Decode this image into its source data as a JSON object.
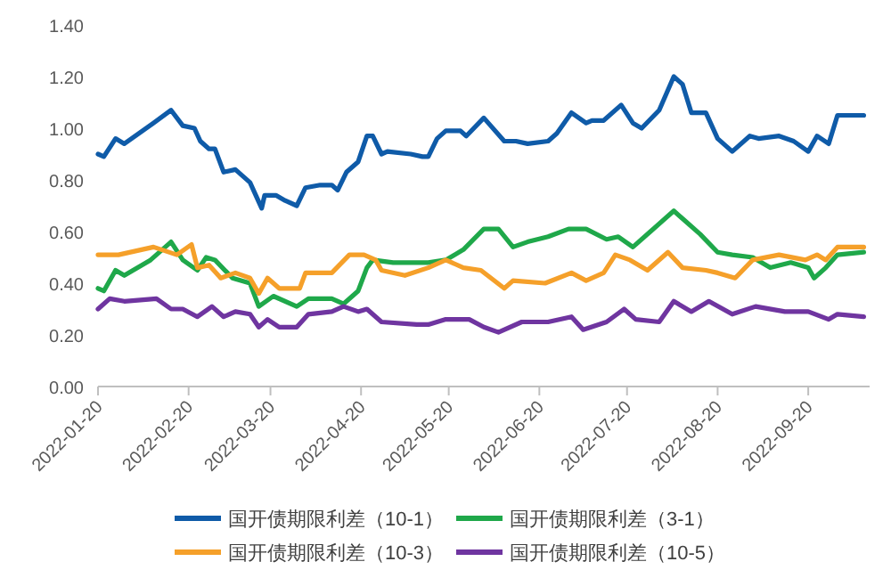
{
  "chart_data": {
    "type": "line",
    "xlim": [
      "2022-01-20",
      "2022-10-11"
    ],
    "ylim": [
      0,
      1.4
    ],
    "xticks": [
      {
        "value": "2022-01-20",
        "label": "2022-01-20"
      },
      {
        "value": "2022-02-20",
        "label": "2022-02-20"
      },
      {
        "value": "2022-03-20",
        "label": "2022-03-20"
      },
      {
        "value": "2022-04-20",
        "label": "2022-04-20"
      },
      {
        "value": "2022-05-20",
        "label": "2022-05-20"
      },
      {
        "value": "2022-06-20",
        "label": "2022-06-20"
      },
      {
        "value": "2022-07-20",
        "label": "2022-07-20"
      },
      {
        "value": "2022-08-20",
        "label": "2022-08-20"
      },
      {
        "value": "2022-09-20",
        "label": "2022-09-20"
      }
    ],
    "yticks": [
      {
        "value": 0,
        "label": "0.00"
      },
      {
        "value": 0.2,
        "label": "0.20"
      },
      {
        "value": 0.4,
        "label": "0.40"
      },
      {
        "value": 0.6,
        "label": "0.60"
      },
      {
        "value": 0.8,
        "label": "0.80"
      },
      {
        "value": 1.0,
        "label": "1.00"
      },
      {
        "value": 1.2,
        "label": "1.20"
      },
      {
        "value": 1.4,
        "label": "1.40"
      }
    ],
    "grid": false,
    "legend": "bottom",
    "marker": "none",
    "line_style": "solid",
    "series": [
      {
        "name": "国开债期限利差（10-1）",
        "color": "#0f5ba8",
        "x": [
          "2022-01-20",
          "2022-01-22",
          "2022-01-26",
          "2022-01-29",
          "2022-02-08",
          "2022-02-14",
          "2022-02-18",
          "2022-02-22",
          "2022-02-24",
          "2022-02-27",
          "2022-03-01",
          "2022-03-04",
          "2022-03-08",
          "2022-03-13",
          "2022-03-17",
          "2022-03-18",
          "2022-03-22",
          "2022-03-25",
          "2022-03-29",
          "2022-04-01",
          "2022-04-06",
          "2022-04-10",
          "2022-04-12",
          "2022-04-15",
          "2022-04-19",
          "2022-04-22",
          "2022-04-24",
          "2022-04-27",
          "2022-04-29",
          "2022-05-07",
          "2022-05-11",
          "2022-05-13",
          "2022-05-16",
          "2022-05-19",
          "2022-05-24",
          "2022-05-26",
          "2022-06-01",
          "2022-06-08",
          "2022-06-12",
          "2022-06-16",
          "2022-06-23",
          "2022-06-26",
          "2022-07-01",
          "2022-07-06",
          "2022-07-08",
          "2022-07-12",
          "2022-07-18",
          "2022-07-22",
          "2022-07-25",
          "2022-07-31",
          "2022-08-05",
          "2022-08-08",
          "2022-08-11",
          "2022-08-16",
          "2022-08-20",
          "2022-08-25",
          "2022-08-31",
          "2022-09-03",
          "2022-09-10",
          "2022-09-15",
          "2022-09-20",
          "2022-09-23",
          "2022-09-27",
          "2022-09-30",
          "2022-10-09"
        ],
        "values": [
          0.9,
          0.89,
          0.96,
          0.94,
          1.02,
          1.07,
          1.01,
          1.0,
          0.95,
          0.92,
          0.92,
          0.83,
          0.84,
          0.79,
          0.69,
          0.74,
          0.74,
          0.72,
          0.7,
          0.77,
          0.78,
          0.78,
          0.76,
          0.83,
          0.87,
          0.97,
          0.97,
          0.9,
          0.91,
          0.9,
          0.89,
          0.89,
          0.96,
          0.99,
          0.99,
          0.97,
          1.04,
          0.95,
          0.95,
          0.94,
          0.95,
          0.98,
          1.06,
          1.02,
          1.03,
          1.03,
          1.09,
          1.02,
          1.0,
          1.07,
          1.2,
          1.17,
          1.06,
          1.06,
          0.96,
          0.91,
          0.97,
          0.96,
          0.97,
          0.95,
          0.91,
          0.97,
          0.94,
          1.05,
          1.05
        ]
      },
      {
        "name": "国开债期限利差（3-1）",
        "color": "#1fa84a",
        "x": [
          "2022-01-20",
          "2022-01-22",
          "2022-01-26",
          "2022-01-29",
          "2022-02-07",
          "2022-02-14",
          "2022-02-18",
          "2022-02-23",
          "2022-02-26",
          "2022-03-01",
          "2022-03-07",
          "2022-03-13",
          "2022-03-16",
          "2022-03-21",
          "2022-03-29",
          "2022-04-02",
          "2022-04-10",
          "2022-04-14",
          "2022-04-19",
          "2022-04-22",
          "2022-04-24",
          "2022-05-01",
          "2022-05-09",
          "2022-05-13",
          "2022-05-19",
          "2022-05-25",
          "2022-06-01",
          "2022-06-06",
          "2022-06-11",
          "2022-06-16",
          "2022-06-23",
          "2022-06-30",
          "2022-07-06",
          "2022-07-13",
          "2022-07-17",
          "2022-07-22",
          "2022-07-28",
          "2022-08-05",
          "2022-08-08",
          "2022-08-14",
          "2022-08-20",
          "2022-08-25",
          "2022-09-01",
          "2022-09-07",
          "2022-09-14",
          "2022-09-20",
          "2022-09-22",
          "2022-09-26",
          "2022-09-30",
          "2022-10-09"
        ],
        "values": [
          0.38,
          0.37,
          0.45,
          0.43,
          0.49,
          0.56,
          0.49,
          0.45,
          0.5,
          0.49,
          0.42,
          0.4,
          0.31,
          0.35,
          0.31,
          0.34,
          0.34,
          0.32,
          0.37,
          0.46,
          0.49,
          0.48,
          0.48,
          0.48,
          0.49,
          0.53,
          0.61,
          0.61,
          0.54,
          0.56,
          0.58,
          0.61,
          0.61,
          0.57,
          0.58,
          0.54,
          0.6,
          0.68,
          0.65,
          0.59,
          0.52,
          0.51,
          0.5,
          0.46,
          0.48,
          0.46,
          0.42,
          0.46,
          0.51,
          0.52
        ]
      },
      {
        "name": "国开债期限利差（10-3）",
        "color": "#f5a02a",
        "x": [
          "2022-01-20",
          "2022-01-24",
          "2022-01-27",
          "2022-02-08",
          "2022-02-16",
          "2022-02-21",
          "2022-02-23",
          "2022-02-27",
          "2022-03-03",
          "2022-03-08",
          "2022-03-13",
          "2022-03-16",
          "2022-03-19",
          "2022-03-23",
          "2022-03-30",
          "2022-04-01",
          "2022-04-10",
          "2022-04-16",
          "2022-04-21",
          "2022-04-25",
          "2022-04-27",
          "2022-05-05",
          "2022-05-13",
          "2022-05-19",
          "2022-05-25",
          "2022-05-31",
          "2022-06-08",
          "2022-06-11",
          "2022-06-22",
          "2022-07-01",
          "2022-07-06",
          "2022-07-12",
          "2022-07-16",
          "2022-07-21",
          "2022-07-27",
          "2022-08-03",
          "2022-08-08",
          "2022-08-16",
          "2022-08-20",
          "2022-08-26",
          "2022-09-01",
          "2022-09-10",
          "2022-09-19",
          "2022-09-23",
          "2022-09-26",
          "2022-09-30",
          "2022-10-09"
        ],
        "values": [
          0.51,
          0.51,
          0.51,
          0.54,
          0.51,
          0.55,
          0.46,
          0.47,
          0.42,
          0.44,
          0.42,
          0.36,
          0.42,
          0.38,
          0.38,
          0.44,
          0.44,
          0.51,
          0.51,
          0.49,
          0.45,
          0.43,
          0.46,
          0.49,
          0.46,
          0.45,
          0.38,
          0.41,
          0.4,
          0.44,
          0.41,
          0.44,
          0.51,
          0.49,
          0.45,
          0.52,
          0.46,
          0.45,
          0.44,
          0.42,
          0.49,
          0.51,
          0.49,
          0.51,
          0.49,
          0.54,
          0.54
        ]
      },
      {
        "name": "国开债期限利差（10-5）",
        "color": "#6f35a0",
        "x": [
          "2022-01-20",
          "2022-01-24",
          "2022-01-29",
          "2022-02-09",
          "2022-02-14",
          "2022-02-18",
          "2022-02-23",
          "2022-02-28",
          "2022-03-04",
          "2022-03-08",
          "2022-03-13",
          "2022-03-16",
          "2022-03-19",
          "2022-03-23",
          "2022-03-29",
          "2022-04-02",
          "2022-04-10",
          "2022-04-14",
          "2022-04-19",
          "2022-04-22",
          "2022-04-27",
          "2022-05-09",
          "2022-05-13",
          "2022-05-19",
          "2022-05-27",
          "2022-06-01",
          "2022-06-06",
          "2022-06-14",
          "2022-06-23",
          "2022-07-01",
          "2022-07-05",
          "2022-07-13",
          "2022-07-19",
          "2022-07-23",
          "2022-07-31",
          "2022-08-05",
          "2022-08-11",
          "2022-08-17",
          "2022-08-25",
          "2022-09-02",
          "2022-09-12",
          "2022-09-20",
          "2022-09-27",
          "2022-09-30",
          "2022-10-09"
        ],
        "values": [
          0.3,
          0.34,
          0.33,
          0.34,
          0.3,
          0.3,
          0.27,
          0.31,
          0.27,
          0.29,
          0.28,
          0.23,
          0.26,
          0.23,
          0.23,
          0.28,
          0.29,
          0.31,
          0.29,
          0.3,
          0.25,
          0.24,
          0.24,
          0.26,
          0.26,
          0.23,
          0.21,
          0.25,
          0.25,
          0.27,
          0.22,
          0.25,
          0.3,
          0.26,
          0.25,
          0.33,
          0.29,
          0.33,
          0.28,
          0.31,
          0.29,
          0.29,
          0.26,
          0.28,
          0.27
        ]
      }
    ]
  }
}
